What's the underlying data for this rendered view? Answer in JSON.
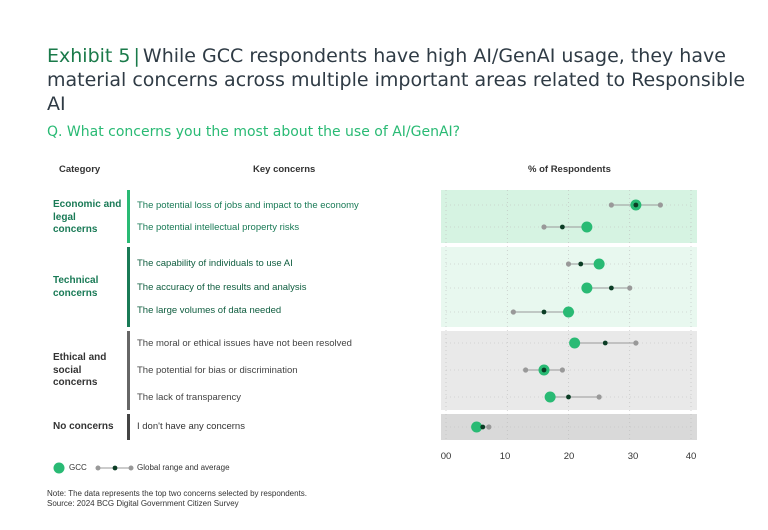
{
  "title": {
    "exhibit": "Exhibit 5",
    "separator": "|",
    "text": "While GCC respondents have high AI/GenAI usage, they have material concerns across multiple important areas related to Responsible AI"
  },
  "question": "Q. What concerns you the most about the use of AI/GenAI?",
  "headers": {
    "category": "Category",
    "concerns": "Key concerns",
    "percent": "% of Respondents"
  },
  "categories": [
    {
      "label": "Economic and legal concerns",
      "color": "#197a56"
    },
    {
      "label": "Technical concerns",
      "color": "#197a56"
    },
    {
      "label": "Ethical and social concerns",
      "color": "#333333"
    },
    {
      "label": "No concerns",
      "color": "#333333"
    }
  ],
  "colors": {
    "gcc": "#29ba74",
    "global_avg": "#0b3d25",
    "global_range": "#999999",
    "band_econ": "#d6f3e2",
    "band_tech": "#e8f8ef",
    "band_eth": "#e9e9e9",
    "band_none": "#d9d9d9"
  },
  "chart_data": {
    "type": "dot-range",
    "xlabel": "% of Respondents",
    "xlim": [
      0,
      40
    ],
    "ticks": [
      "00",
      "10",
      "20",
      "30",
      "40"
    ],
    "tick_values": [
      0,
      10,
      20,
      30,
      40
    ],
    "rows": [
      {
        "category": 0,
        "concern": "The potential loss of jobs and impact to the economy",
        "gcc": 31,
        "global_min": 27,
        "global_max": 35,
        "global_avg": 31
      },
      {
        "category": 0,
        "concern": "The potential intellectual property risks",
        "gcc": 23,
        "global_min": 16,
        "global_max": 23,
        "global_avg": 19
      },
      {
        "category": 1,
        "concern": "The capability of individuals to use AI",
        "gcc": 25,
        "global_min": 20,
        "global_max": 25,
        "global_avg": 22
      },
      {
        "category": 1,
        "concern": "The accuracy of the results and analysis",
        "gcc": 23,
        "global_min": 23,
        "global_max": 30,
        "global_avg": 27
      },
      {
        "category": 1,
        "concern": "The large volumes of data needed",
        "gcc": 20,
        "global_min": 11,
        "global_max": 20,
        "global_avg": 16
      },
      {
        "category": 2,
        "concern": "The moral or ethical issues have not been resolved",
        "gcc": 21,
        "global_min": 21,
        "global_max": 31,
        "global_avg": 26
      },
      {
        "category": 2,
        "concern": "The potential for bias or discrimination",
        "gcc": 16,
        "global_min": 13,
        "global_max": 19,
        "global_avg": 16
      },
      {
        "category": 2,
        "concern": "The lack of transparency",
        "gcc": 17,
        "global_min": 17,
        "global_max": 25,
        "global_avg": 20
      },
      {
        "category": 3,
        "concern": "I don't have any concerns",
        "gcc": 5,
        "global_min": 5,
        "global_max": 7,
        "global_avg": 6
      }
    ],
    "legend": [
      "GCC",
      "Global range and average"
    ]
  },
  "footnote": {
    "note": "Note: The data represents the top two concerns selected by respondents.",
    "source": "Source: 2024 BCG Digital Government Citizen Survey"
  }
}
